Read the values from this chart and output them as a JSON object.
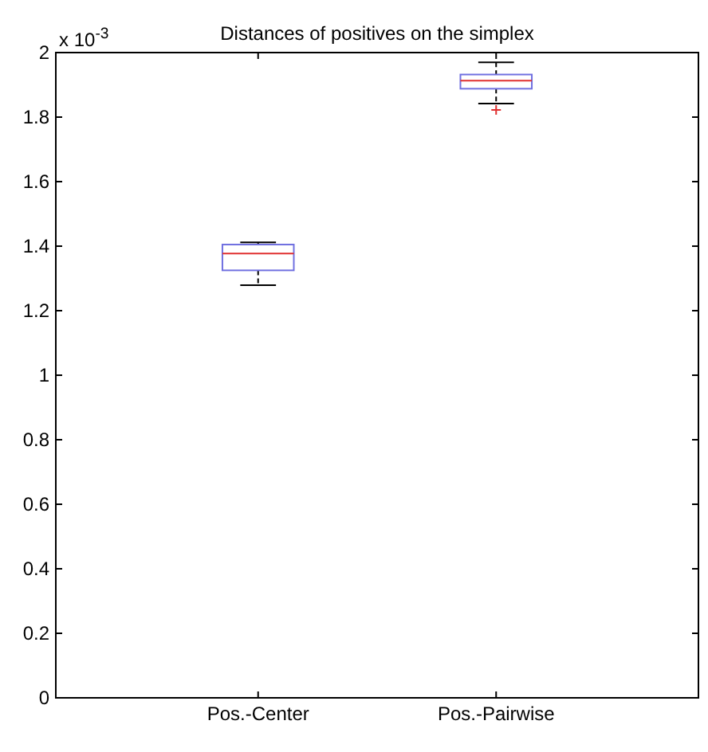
{
  "chart_data": {
    "type": "box",
    "title": "Distances of positives on the simplex",
    "categories": [
      "Pos.-Center",
      "Pos.-Pairwise"
    ],
    "boxes": [
      {
        "low": 1.279,
        "q1": 1.325,
        "median": 1.377,
        "q3": 1.405,
        "high": 1.412
      },
      {
        "low": 1.842,
        "q1": 1.888,
        "median": 1.913,
        "q3": 1.932,
        "high": 1.97,
        "outliers": [
          1.822
        ]
      }
    ],
    "color": "#7070e0",
    "ylim": [
      0,
      2
    ],
    "yticks": [
      0,
      0.2,
      0.4,
      0.6,
      0.8,
      1,
      1.2,
      1.4,
      1.6,
      1.8,
      2
    ],
    "annotations": [
      "x 10$^{-3}$"
    ]
  }
}
